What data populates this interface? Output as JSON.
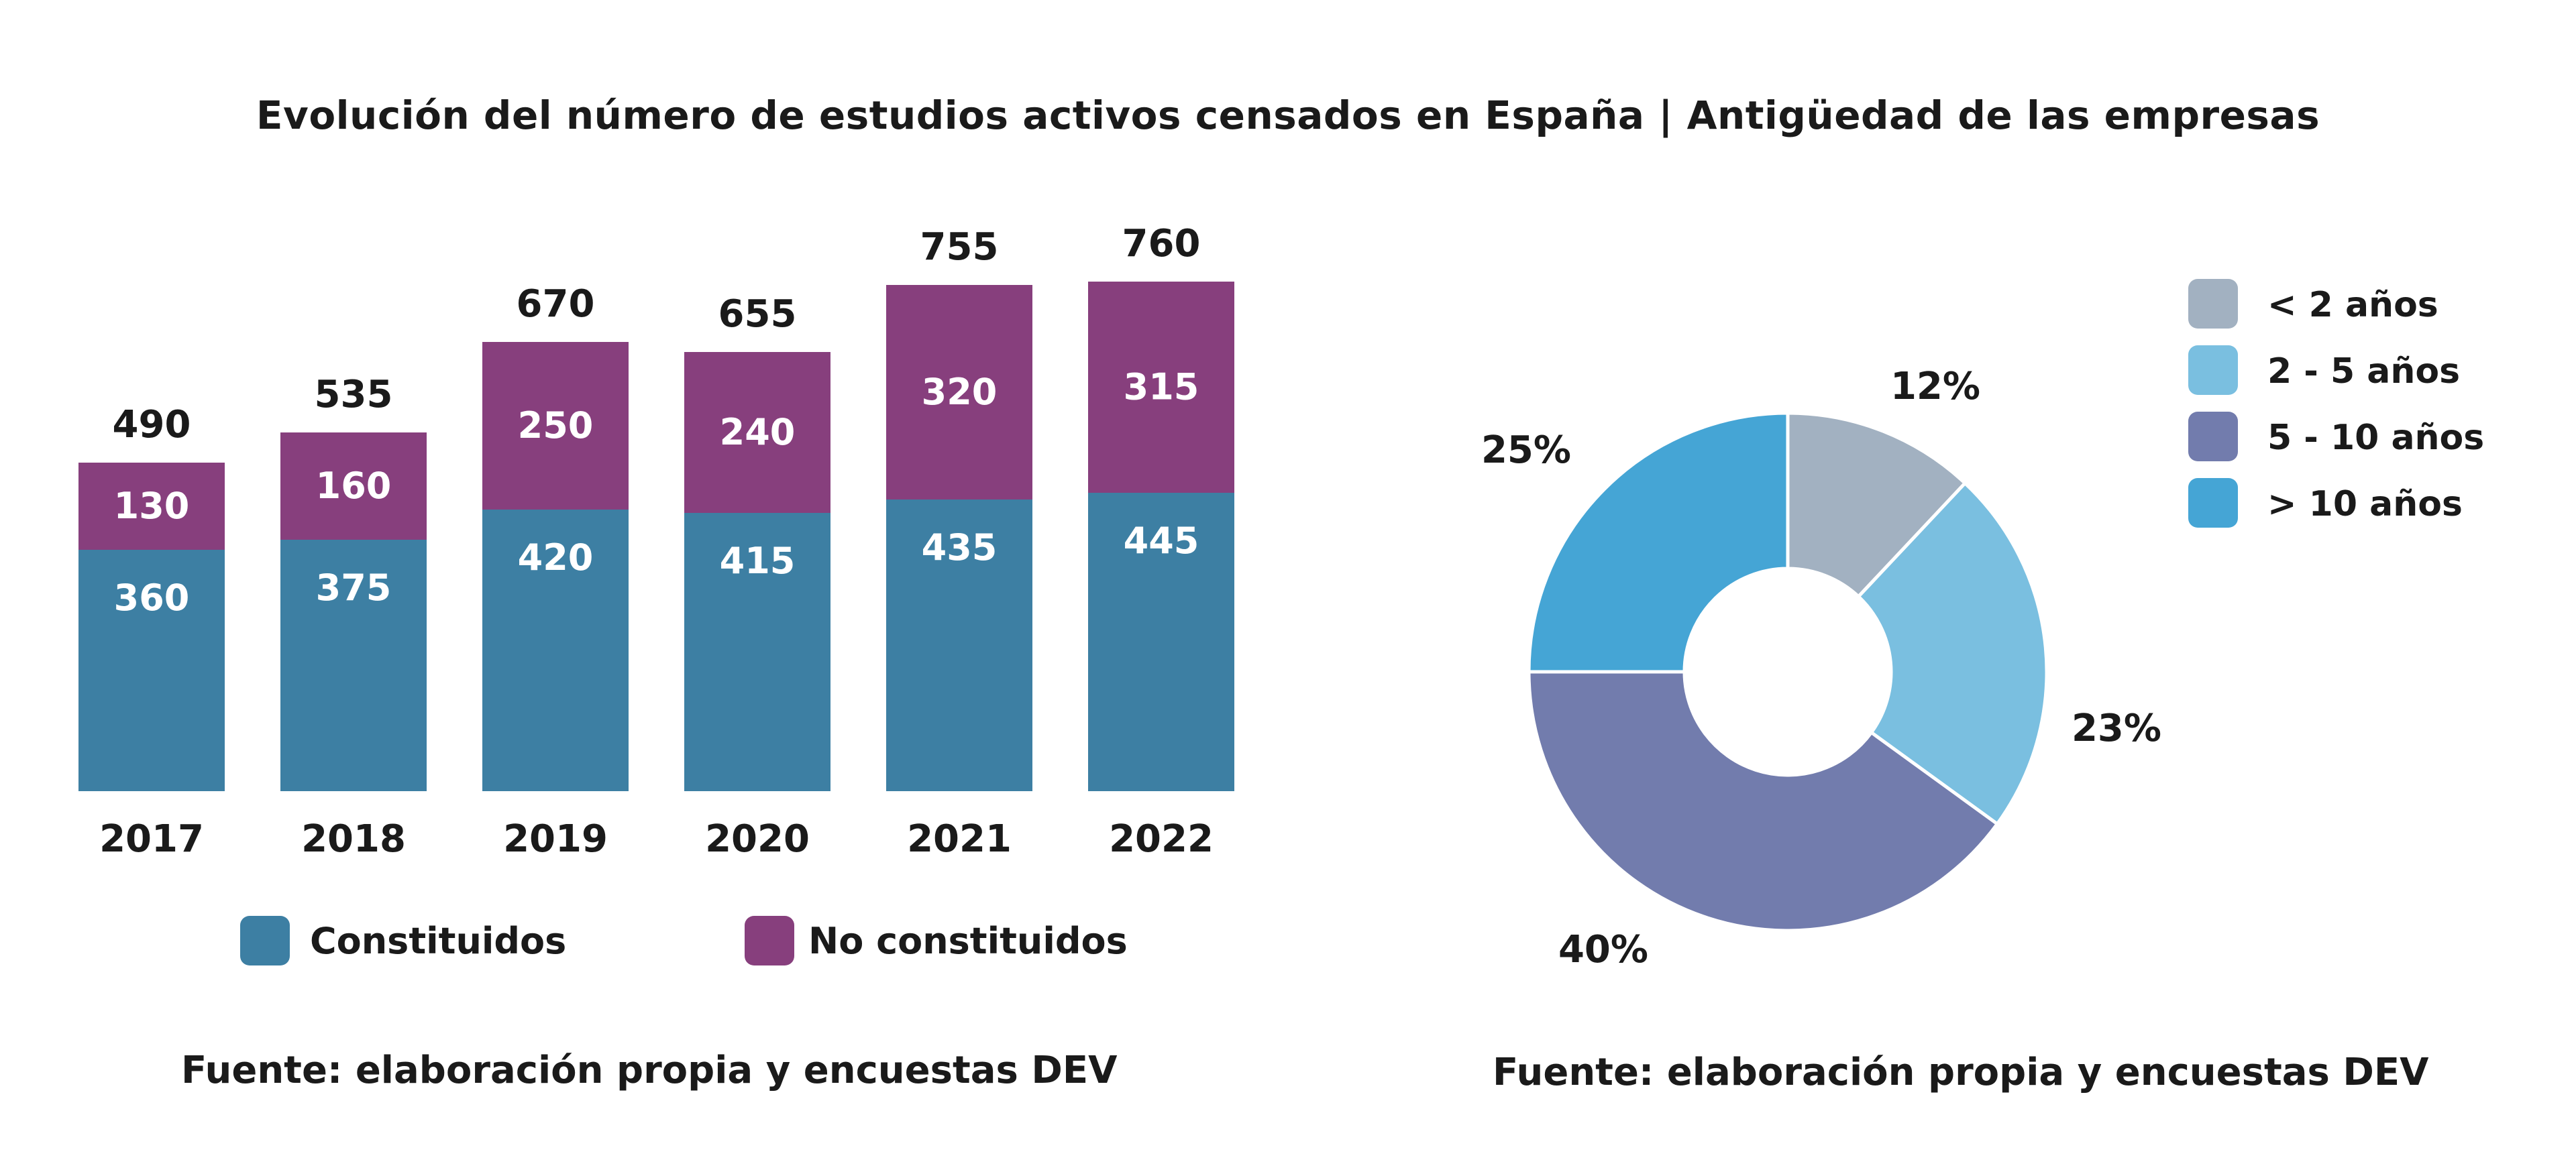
{
  "title": "Evolución del número de estudios activos censados en España | Antigüedad de las empresas",
  "chart_data": [
    {
      "type": "bar",
      "stacked": true,
      "categories": [
        "2017",
        "2018",
        "2019",
        "2020",
        "2021",
        "2022"
      ],
      "series": [
        {
          "name": "Constituidos",
          "color": "#3d7fa3",
          "values": [
            360,
            375,
            420,
            415,
            435,
            445
          ]
        },
        {
          "name": "No constituidos",
          "color": "#873f7d",
          "values": [
            130,
            160,
            250,
            240,
            320,
            315
          ]
        }
      ],
      "totals": [
        490,
        535,
        670,
        655,
        755,
        760
      ],
      "legend_position": "bottom",
      "source": "Fuente: elaboración propia y encuestas DEV"
    },
    {
      "type": "pie",
      "donut": true,
      "labels": [
        "< 2 años",
        "2 - 5 años",
        "5 - 10 años",
        "> 10 años"
      ],
      "values": [
        12,
        23,
        40,
        25
      ],
      "value_labels": [
        "12%",
        "23%",
        "40%",
        "25%"
      ],
      "colors": [
        "#a2b1c1",
        "#7abfe0",
        "#727cad",
        "#45a5d5"
      ],
      "legend_position": "top-right",
      "source": "Fuente: elaboración propia y encuestas DEV"
    }
  ]
}
